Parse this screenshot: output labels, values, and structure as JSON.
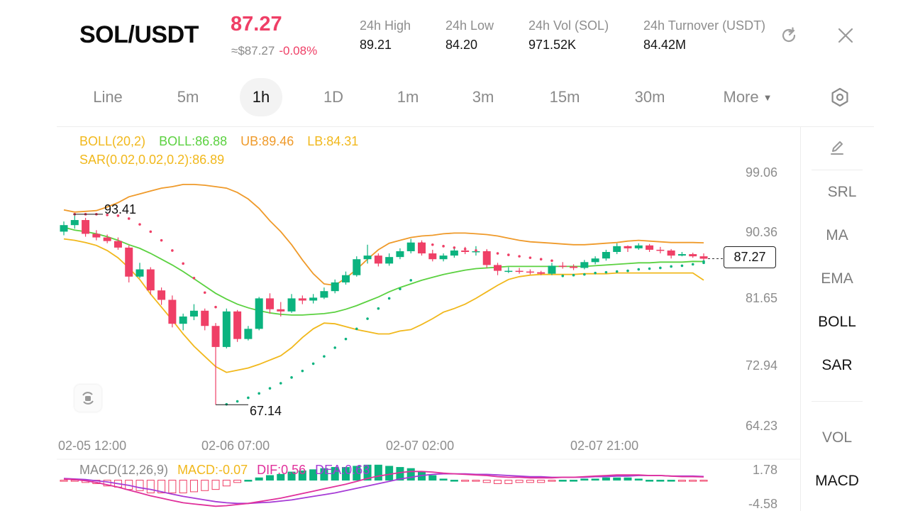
{
  "header": {
    "pair": "SOL/USDT",
    "last_price": "87.27",
    "fiat_price": "≈$87.27",
    "change": "-0.08%",
    "stats": [
      {
        "label": "24h  High",
        "value": "89.21"
      },
      {
        "label": "24h  Low",
        "value": "84.20"
      },
      {
        "label": "24h  Vol (SOL)",
        "value": "971.52K"
      },
      {
        "label": "24h  Turnover (USDT)",
        "value": "84.42M"
      }
    ],
    "icons": {
      "refresh": "refresh-icon",
      "close": "close-icon",
      "settings": "hexagon-gear-icon",
      "draw": "pencil-icon",
      "screenshot": "rotate-camera-icon"
    }
  },
  "intervals": [
    {
      "label": "Line",
      "active": false
    },
    {
      "label": "5m",
      "active": false
    },
    {
      "label": "1h",
      "active": true
    },
    {
      "label": "1D",
      "active": false
    },
    {
      "label": "1m",
      "active": false
    },
    {
      "label": "3m",
      "active": false
    },
    {
      "label": "15m",
      "active": false
    },
    {
      "label": "30m",
      "active": false
    },
    {
      "label": "More",
      "active": false
    }
  ],
  "indicators_legend": {
    "boll_params": "BOLL(20,2)",
    "boll_mid": "BOLL:86.88",
    "ub": "UB:89.46",
    "lb": "LB:84.31",
    "sar": "SAR(0.02,0.02,0.2):86.89"
  },
  "side_panel": {
    "items": [
      {
        "label": "SRL",
        "on": false
      },
      {
        "label": "MA",
        "on": false
      },
      {
        "label": "EMA",
        "on": false
      },
      {
        "label": "BOLL",
        "on": true
      },
      {
        "label": "SAR",
        "on": true
      },
      {
        "label": "VOL",
        "on": false
      },
      {
        "label": "MACD",
        "on": true
      }
    ]
  },
  "colors": {
    "up": "#0bb37f",
    "down": "#ef3f66",
    "boll_mid": "#5bd140",
    "boll_band": "#ef9a2a",
    "boll_lower": "#f1b81c",
    "sar": "#ef3f66",
    "macd_dif": "#e0309b",
    "macd_dea": "#a63bd6"
  },
  "chart_data": {
    "type": "candlestick",
    "y_axis_ticks": [
      "99.06",
      "90.36",
      "81.65",
      "72.94",
      "64.23"
    ],
    "ylim": [
      64.23,
      99.06
    ],
    "x_axis_ticks": [
      "02-05 12:00",
      "02-06 07:00",
      "02-07 02:00",
      "02-07 21:00"
    ],
    "current_price_tag": "87.27",
    "high_marker": "93.41",
    "low_marker": "67.14",
    "candles": [
      [
        91.0,
        91.9,
        90.5,
        92.4
      ],
      [
        91.9,
        92.6,
        91.4,
        93.4
      ],
      [
        92.6,
        90.7,
        90.3,
        92.9
      ],
      [
        90.7,
        90.2,
        89.8,
        91.2
      ],
      [
        90.2,
        89.7,
        89.4,
        90.6
      ],
      [
        89.7,
        88.8,
        88.5,
        90.2
      ],
      [
        88.8,
        84.8,
        84.0,
        89.1
      ],
      [
        84.8,
        85.8,
        84.6,
        86.7
      ],
      [
        85.8,
        82.9,
        82.3,
        86.1
      ],
      [
        82.9,
        81.6,
        80.9,
        83.3
      ],
      [
        81.6,
        78.3,
        77.8,
        82.2
      ],
      [
        78.3,
        79.3,
        77.4,
        79.7
      ],
      [
        79.3,
        80.1,
        78.8,
        81.0
      ],
      [
        80.1,
        78.0,
        77.4,
        80.4
      ],
      [
        78.0,
        75.1,
        67.14,
        78.4
      ],
      [
        75.1,
        80.0,
        74.9,
        80.4
      ],
      [
        80.0,
        76.2,
        75.8,
        80.2
      ],
      [
        76.2,
        77.6,
        76.0,
        78.0
      ],
      [
        77.6,
        81.8,
        77.4,
        82.0
      ],
      [
        81.8,
        80.3,
        79.7,
        82.5
      ],
      [
        80.3,
        80.0,
        79.3,
        81.3
      ],
      [
        80.0,
        81.8,
        79.8,
        82.4
      ],
      [
        81.8,
        81.5,
        81.0,
        82.2
      ],
      [
        81.5,
        81.9,
        81.1,
        82.4
      ],
      [
        81.9,
        82.8,
        81.7,
        83.3
      ],
      [
        82.8,
        84.0,
        82.5,
        84.4
      ],
      [
        84.0,
        85.0,
        83.7,
        85.5
      ],
      [
        85.0,
        87.2,
        84.8,
        87.6
      ],
      [
        87.2,
        87.7,
        86.6,
        89.2
      ],
      [
        87.7,
        86.6,
        86.2,
        88.0
      ],
      [
        86.6,
        87.5,
        86.3,
        88.0
      ],
      [
        87.5,
        88.3,
        87.2,
        88.7
      ],
      [
        88.3,
        89.5,
        88.0,
        90.0
      ],
      [
        89.5,
        88.0,
        87.7,
        89.8
      ],
      [
        88.0,
        87.2,
        86.9,
        88.5
      ],
      [
        87.2,
        87.7,
        86.9,
        88.0
      ],
      [
        87.7,
        88.4,
        87.4,
        88.7
      ],
      [
        88.4,
        88.2,
        87.9,
        88.9
      ],
      [
        88.2,
        88.3,
        87.7,
        89.0
      ],
      [
        88.3,
        86.4,
        86.0,
        88.6
      ],
      [
        86.4,
        85.6,
        85.0,
        86.7
      ],
      [
        85.6,
        85.6,
        85.3,
        86.1
      ],
      [
        85.6,
        85.5,
        85.2,
        86.0
      ],
      [
        85.5,
        85.4,
        85.1,
        85.8
      ],
      [
        85.4,
        85.2,
        85.0,
        85.6
      ],
      [
        85.2,
        86.3,
        85.0,
        86.7
      ],
      [
        86.3,
        86.2,
        85.9,
        86.8
      ],
      [
        86.2,
        86.0,
        85.7,
        86.5
      ],
      [
        86.0,
        86.8,
        85.8,
        87.1
      ],
      [
        86.8,
        87.3,
        86.5,
        87.6
      ],
      [
        87.3,
        88.2,
        87.0,
        88.5
      ],
      [
        88.2,
        89.0,
        87.9,
        89.4
      ],
      [
        89.0,
        88.7,
        88.2,
        89.1
      ],
      [
        88.7,
        89.1,
        88.5,
        89.4
      ],
      [
        89.1,
        88.5,
        88.2,
        89.3
      ],
      [
        88.5,
        88.4,
        88.0,
        88.9
      ],
      [
        88.4,
        87.7,
        87.3,
        88.6
      ],
      [
        87.7,
        87.9,
        87.6,
        88.2
      ],
      [
        87.9,
        87.6,
        87.4,
        88.1
      ],
      [
        87.6,
        87.27,
        87.0,
        88.0
      ]
    ],
    "boll_upper": [
      94.0,
      93.7,
      93.8,
      93.9,
      94.4,
      95.0,
      95.8,
      96.2,
      96.6,
      97.0,
      97.2,
      97.5,
      97.5,
      97.4,
      97.2,
      97.0,
      96.4,
      95.5,
      94.2,
      92.5,
      91.0,
      89.2,
      87.1,
      85.2,
      83.8,
      83.6,
      84.6,
      85.8,
      87.2,
      88.5,
      89.4,
      89.8,
      90.2,
      90.4,
      90.5,
      90.7,
      90.8,
      90.8,
      90.7,
      90.6,
      90.4,
      90.1,
      89.8,
      89.6,
      89.5,
      89.4,
      89.3,
      89.2,
      89.2,
      89.3,
      89.4,
      89.5,
      89.7,
      89.8,
      89.7,
      89.6,
      89.5,
      89.5,
      89.5,
      89.46
    ],
    "boll_mid": [
      91.6,
      91.2,
      91.0,
      90.7,
      90.3,
      89.8,
      89.2,
      88.7,
      88.0,
      87.2,
      86.4,
      85.5,
      84.5,
      83.5,
      82.5,
      81.7,
      81.0,
      80.5,
      80.1,
      79.8,
      79.6,
      79.5,
      79.5,
      79.6,
      79.7,
      79.9,
      80.3,
      80.8,
      81.4,
      82.0,
      82.7,
      83.3,
      83.8,
      84.3,
      84.7,
      85.1,
      85.4,
      85.7,
      85.9,
      86.0,
      86.1,
      86.2,
      86.2,
      86.2,
      86.2,
      86.2,
      86.2,
      86.2,
      86.2,
      86.3,
      86.4,
      86.5,
      86.6,
      86.7,
      86.7,
      86.8,
      86.8,
      86.8,
      86.9,
      86.88
    ],
    "boll_lower": [
      90.0,
      89.8,
      89.5,
      89.1,
      88.4,
      87.4,
      86.0,
      84.4,
      82.4,
      80.6,
      78.8,
      76.9,
      75.2,
      73.8,
      72.4,
      71.6,
      71.9,
      72.2,
      72.7,
      73.3,
      73.9,
      75.0,
      76.4,
      77.6,
      78.4,
      78.3,
      77.9,
      77.5,
      77.2,
      76.9,
      76.9,
      77.3,
      77.5,
      78.2,
      79.0,
      79.9,
      80.4,
      81.0,
      81.8,
      82.7,
      83.6,
      84.4,
      84.8,
      85.0,
      85.1,
      85.1,
      85.1,
      85.1,
      85.2,
      85.2,
      85.2,
      85.3,
      85.3,
      85.3,
      85.3,
      85.3,
      85.3,
      85.3,
      85.3,
      84.31
    ],
    "sar_points": [
      [
        1,
        93.4
      ],
      [
        2,
        93.4
      ],
      [
        3,
        93.4
      ],
      [
        4,
        93.3
      ],
      [
        5,
        93.2
      ],
      [
        6,
        92.8
      ],
      [
        7,
        92.0
      ],
      [
        8,
        91.0
      ],
      [
        9,
        89.8
      ],
      [
        10,
        88.4
      ],
      [
        11,
        86.6
      ],
      [
        12,
        84.6
      ],
      [
        13,
        82.6
      ],
      [
        14,
        80.6
      ],
      [
        15,
        67.2
      ],
      [
        16,
        67.6
      ],
      [
        17,
        68.1
      ],
      [
        18,
        68.7
      ],
      [
        19,
        69.4
      ],
      [
        20,
        70.1
      ],
      [
        21,
        70.9
      ],
      [
        22,
        71.8
      ],
      [
        23,
        72.8
      ],
      [
        24,
        73.8
      ],
      [
        25,
        75.0
      ],
      [
        26,
        76.2
      ],
      [
        27,
        77.6
      ],
      [
        28,
        79.0
      ],
      [
        29,
        80.4
      ],
      [
        30,
        81.8
      ],
      [
        31,
        83.1
      ],
      [
        32,
        84.3
      ],
      [
        33,
        89.4
      ],
      [
        34,
        89.2
      ],
      [
        35,
        89.0
      ],
      [
        36,
        88.8
      ],
      [
        37,
        88.6
      ],
      [
        38,
        88.4
      ],
      [
        39,
        88.2
      ],
      [
        40,
        88.0
      ],
      [
        41,
        87.8
      ],
      [
        42,
        87.6
      ],
      [
        43,
        87.4
      ],
      [
        44,
        87.2
      ],
      [
        45,
        87.0
      ],
      [
        46,
        84.9
      ],
      [
        47,
        85.0
      ],
      [
        48,
        85.1
      ],
      [
        49,
        85.3
      ],
      [
        50,
        85.4
      ],
      [
        51,
        85.5
      ],
      [
        52,
        85.6
      ],
      [
        53,
        85.8
      ],
      [
        54,
        85.9
      ],
      [
        55,
        86.0
      ],
      [
        56,
        86.2
      ],
      [
        57,
        86.3
      ],
      [
        58,
        86.5
      ],
      [
        59,
        86.7
      ],
      [
        60,
        86.89
      ]
    ],
    "macd": {
      "title": "MACD(12,26,9)",
      "macd_label": "MACD:-0.07",
      "dif_label": "DIF:0.56",
      "dea_label": "DEA:0.63",
      "ylim": [
        -4.58,
        1.78
      ],
      "y_ticks": [
        "1.78",
        "-4.58"
      ],
      "dif": [
        0.2,
        0.1,
        -0.1,
        -0.4,
        -0.8,
        -1.2,
        -1.7,
        -2.2,
        -2.7,
        -3.1,
        -3.5,
        -3.9,
        -4.1,
        -4.3,
        -4.5,
        -4.4,
        -4.2,
        -4.0,
        -3.7,
        -3.4,
        -3.1,
        -2.7,
        -2.3,
        -1.9,
        -1.5,
        -1.1,
        -0.7,
        -0.2,
        0.3,
        0.7,
        1.0,
        1.3,
        1.5,
        1.5,
        1.4,
        1.2,
        1.1,
        1.0,
        0.9,
        0.8,
        0.6,
        0.5,
        0.5,
        0.4,
        0.4,
        0.4,
        0.5,
        0.5,
        0.6,
        0.7,
        0.8,
        0.9,
        0.9,
        0.9,
        0.8,
        0.8,
        0.7,
        0.6,
        0.6,
        0.56
      ],
      "dea": [
        0.3,
        0.2,
        0.1,
        -0.1,
        -0.3,
        -0.6,
        -0.9,
        -1.3,
        -1.6,
        -2.0,
        -2.4,
        -2.8,
        -3.1,
        -3.4,
        -3.7,
        -3.9,
        -4.0,
        -4.0,
        -3.9,
        -3.8,
        -3.6,
        -3.4,
        -3.1,
        -2.8,
        -2.5,
        -2.2,
        -1.8,
        -1.4,
        -1.0,
        -0.6,
        -0.2,
        0.2,
        0.5,
        0.8,
        1.0,
        1.1,
        1.1,
        1.1,
        1.0,
        1.0,
        0.9,
        0.8,
        0.7,
        0.6,
        0.6,
        0.5,
        0.5,
        0.5,
        0.5,
        0.6,
        0.6,
        0.7,
        0.7,
        0.8,
        0.8,
        0.8,
        0.7,
        0.7,
        0.7,
        0.63
      ]
    }
  }
}
